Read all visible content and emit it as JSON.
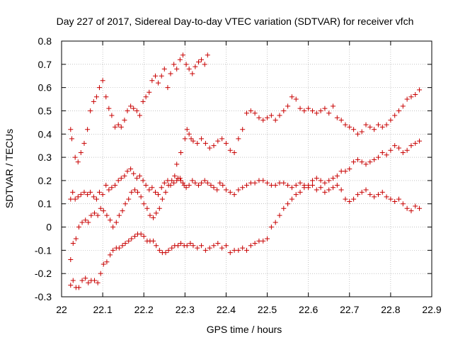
{
  "chart_data": {
    "type": "scatter",
    "title": "Day 227 of 2017, Sidereal Day-to-day VTEC variation (SDTVAR) for receiver vfch",
    "xlabel": "GPS time / hours",
    "ylabel": "SDTVAR / TECUs",
    "xlim": [
      22.0,
      22.9
    ],
    "ylim": [
      -0.3,
      0.8
    ],
    "xticks": [
      "22",
      "22.1",
      "22.2",
      "22.3",
      "22.4",
      "22.5",
      "22.6",
      "22.7",
      "22.8",
      "22.9"
    ],
    "yticks": [
      "-0.3",
      "-0.2",
      "-0.1",
      "0",
      "0.1",
      "0.2",
      "0.3",
      "0.4",
      "0.5",
      "0.6",
      "0.7",
      "0.8"
    ],
    "grid": true,
    "marker": "plus",
    "color": "#c80000",
    "series": [
      {
        "x": [
          22.022,
          22.025,
          22.033,
          22.04,
          22.047,
          22.055,
          22.063,
          22.07,
          22.078,
          22.085,
          22.092,
          22.1,
          22.108,
          22.115,
          22.122,
          22.13,
          22.138,
          22.145,
          22.153,
          22.16,
          22.168,
          22.175,
          22.183,
          22.19,
          22.198,
          22.205,
          22.213,
          22.22,
          22.228,
          22.235,
          22.243,
          22.25,
          22.258,
          22.265,
          22.273,
          22.28,
          22.288,
          22.295,
          22.303,
          22.31,
          22.318,
          22.325,
          22.333,
          22.34,
          22.348,
          22.355
        ],
        "y": [
          0.42,
          0.38,
          0.3,
          0.28,
          0.32,
          0.36,
          0.42,
          0.5,
          0.54,
          0.56,
          0.6,
          0.63,
          0.56,
          0.51,
          0.48,
          0.43,
          0.44,
          0.43,
          0.46,
          0.5,
          0.52,
          0.51,
          0.5,
          0.48,
          0.54,
          0.56,
          0.58,
          0.63,
          0.65,
          0.62,
          0.65,
          0.68,
          0.6,
          0.66,
          0.7,
          0.68,
          0.72,
          0.74,
          0.7,
          0.68,
          0.66,
          0.69,
          0.71,
          0.72,
          0.7,
          0.74
        ]
      },
      {
        "x": [
          22.28,
          22.29,
          22.3,
          22.305,
          22.31,
          22.315,
          22.32,
          22.33,
          22.34,
          22.35,
          22.36,
          22.37,
          22.38,
          22.39,
          22.4,
          22.41,
          22.42,
          22.43,
          22.44,
          22.45,
          22.46,
          22.47,
          22.48,
          22.49,
          22.5,
          22.51,
          22.52,
          22.53,
          22.54,
          22.55,
          22.56,
          22.57,
          22.58,
          22.59,
          22.6,
          22.61,
          22.62,
          22.63,
          22.64,
          22.65,
          22.66,
          22.67,
          22.68,
          22.69,
          22.7,
          22.71,
          22.72,
          22.73,
          22.74,
          22.75,
          22.76,
          22.77,
          22.78,
          22.79,
          22.8,
          22.81,
          22.82,
          22.83,
          22.84,
          22.85,
          22.86,
          22.87
        ],
        "y": [
          0.27,
          0.32,
          0.38,
          0.42,
          0.4,
          0.38,
          0.37,
          0.36,
          0.38,
          0.36,
          0.34,
          0.35,
          0.37,
          0.38,
          0.36,
          0.33,
          0.32,
          0.38,
          0.42,
          0.49,
          0.5,
          0.49,
          0.47,
          0.46,
          0.47,
          0.48,
          0.46,
          0.48,
          0.5,
          0.52,
          0.56,
          0.55,
          0.51,
          0.5,
          0.51,
          0.5,
          0.49,
          0.5,
          0.51,
          0.49,
          0.52,
          0.47,
          0.46,
          0.44,
          0.43,
          0.42,
          0.4,
          0.41,
          0.44,
          0.43,
          0.42,
          0.44,
          0.43,
          0.44,
          0.46,
          0.48,
          0.5,
          0.52,
          0.55,
          0.56,
          0.57,
          0.59
        ]
      },
      {
        "x": [
          22.022,
          22.027,
          22.033,
          22.04,
          22.047,
          22.055,
          22.063,
          22.07,
          22.078,
          22.085,
          22.092,
          22.1,
          22.108,
          22.115,
          22.122,
          22.13,
          22.138,
          22.145,
          22.153,
          22.16,
          22.168,
          22.175,
          22.183,
          22.19,
          22.198,
          22.205,
          22.213,
          22.22,
          22.228,
          22.235,
          22.243,
          22.25,
          22.258,
          22.265,
          22.273,
          22.28,
          22.288,
          22.295,
          22.303,
          22.31,
          22.318,
          22.325,
          22.333,
          22.34,
          22.348,
          22.355,
          22.363,
          22.37,
          22.378,
          22.385,
          22.392,
          22.4,
          22.41,
          22.42,
          22.43,
          22.44,
          22.45,
          22.46,
          22.47,
          22.48,
          22.49,
          22.5,
          22.51,
          22.52,
          22.53,
          22.54,
          22.55,
          22.56,
          22.57,
          22.58,
          22.59,
          22.6,
          22.61,
          22.62,
          22.63,
          22.64,
          22.65,
          22.66,
          22.67,
          22.68,
          22.69,
          22.7,
          22.71,
          22.72,
          22.73,
          22.74,
          22.75,
          22.76,
          22.77,
          22.78,
          22.79,
          22.8,
          22.81,
          22.82,
          22.83,
          22.84,
          22.85,
          22.86,
          22.87
        ],
        "y": [
          0.12,
          0.15,
          0.12,
          0.13,
          0.14,
          0.15,
          0.14,
          0.15,
          0.13,
          0.12,
          0.15,
          0.14,
          0.18,
          0.16,
          0.17,
          0.18,
          0.2,
          0.21,
          0.22,
          0.24,
          0.25,
          0.23,
          0.21,
          0.22,
          0.2,
          0.18,
          0.16,
          0.17,
          0.15,
          0.14,
          0.17,
          0.19,
          0.2,
          0.18,
          0.19,
          0.2,
          0.21,
          0.19,
          0.17,
          0.18,
          0.2,
          0.19,
          0.18,
          0.19,
          0.2,
          0.19,
          0.18,
          0.17,
          0.16,
          0.19,
          0.18,
          0.16,
          0.15,
          0.14,
          0.16,
          0.17,
          0.18,
          0.19,
          0.19,
          0.2,
          0.2,
          0.19,
          0.18,
          0.18,
          0.19,
          0.19,
          0.18,
          0.17,
          0.18,
          0.19,
          0.18,
          0.17,
          0.18,
          0.16,
          0.17,
          0.15,
          0.16,
          0.17,
          0.18,
          0.16,
          0.12,
          0.11,
          0.12,
          0.14,
          0.15,
          0.16,
          0.14,
          0.13,
          0.14,
          0.15,
          0.13,
          0.12,
          0.11,
          0.12,
          0.1,
          0.08,
          0.07,
          0.09,
          0.08
        ]
      },
      {
        "x": [
          22.022,
          22.028,
          22.035,
          22.042,
          22.05,
          22.058,
          22.065,
          22.072,
          22.08,
          22.088,
          22.095,
          22.102,
          22.11,
          22.118,
          22.125,
          22.133,
          22.14,
          22.148,
          22.155,
          22.163,
          22.17,
          22.178,
          22.185,
          22.193,
          22.2,
          22.208,
          22.215,
          22.223,
          22.23,
          22.238,
          22.245,
          22.253,
          22.26,
          22.268,
          22.275,
          22.283,
          22.29,
          22.298,
          22.305,
          22.313,
          22.32,
          22.33,
          22.34,
          22.35,
          22.36,
          22.37,
          22.38,
          22.39,
          22.4,
          22.41,
          22.42,
          22.43,
          22.44,
          22.45,
          22.46,
          22.47,
          22.48,
          22.49,
          22.5,
          22.51,
          22.52,
          22.53,
          22.54,
          22.55,
          22.56,
          22.57,
          22.58,
          22.59,
          22.6,
          22.61,
          22.62,
          22.63,
          22.64,
          22.65,
          22.66,
          22.67,
          22.68,
          22.69,
          22.7,
          22.71,
          22.72,
          22.73,
          22.74,
          22.75,
          22.76,
          22.77,
          22.78,
          22.79,
          22.8,
          22.81,
          22.82,
          22.83,
          22.84,
          22.85,
          22.86,
          22.87
        ],
        "y": [
          -0.14,
          -0.07,
          -0.05,
          0.0,
          0.02,
          0.03,
          0.02,
          0.05,
          0.06,
          0.05,
          0.08,
          0.07,
          0.05,
          0.03,
          0.0,
          0.02,
          0.05,
          0.07,
          0.1,
          0.12,
          0.15,
          0.16,
          0.15,
          0.13,
          0.1,
          0.08,
          0.05,
          0.04,
          0.06,
          0.08,
          0.12,
          0.15,
          0.18,
          0.2,
          0.22,
          0.21,
          0.2,
          0.18,
          -0.08,
          -0.07,
          -0.08,
          -0.09,
          -0.08,
          -0.1,
          -0.09,
          -0.08,
          -0.07,
          -0.09,
          -0.08,
          -0.11,
          -0.1,
          -0.1,
          -0.09,
          -0.1,
          -0.08,
          -0.07,
          -0.06,
          -0.06,
          -0.05,
          0.0,
          0.02,
          0.05,
          0.08,
          0.1,
          0.12,
          0.14,
          0.15,
          0.17,
          0.18,
          0.2,
          0.21,
          0.2,
          0.19,
          0.2,
          0.21,
          0.22,
          0.24,
          0.24,
          0.25,
          0.28,
          0.29,
          0.28,
          0.27,
          0.28,
          0.29,
          0.3,
          0.32,
          0.31,
          0.33,
          0.35,
          0.34,
          0.32,
          0.33,
          0.35,
          0.36,
          0.37
        ]
      },
      {
        "x": [
          22.022,
          22.028,
          22.035,
          22.042,
          22.05,
          22.058,
          22.065,
          22.072,
          22.08,
          22.088,
          22.095,
          22.102,
          22.11,
          22.118,
          22.125,
          22.133,
          22.14,
          22.148,
          22.155,
          22.163,
          22.17,
          22.178,
          22.185,
          22.193,
          22.2,
          22.208,
          22.215,
          22.223,
          22.23,
          22.238,
          22.245,
          22.253,
          22.26,
          22.268,
          22.275,
          22.283,
          22.29,
          22.298
        ],
        "y": [
          -0.25,
          -0.23,
          -0.26,
          -0.26,
          -0.23,
          -0.22,
          -0.24,
          -0.23,
          -0.23,
          -0.24,
          -0.2,
          -0.16,
          -0.15,
          -0.12,
          -0.1,
          -0.09,
          -0.09,
          -0.08,
          -0.07,
          -0.06,
          -0.05,
          -0.04,
          -0.03,
          -0.03,
          -0.04,
          -0.06,
          -0.06,
          -0.06,
          -0.08,
          -0.1,
          -0.11,
          -0.11,
          -0.1,
          -0.09,
          -0.08,
          -0.08,
          -0.07,
          -0.08
        ]
      }
    ]
  }
}
